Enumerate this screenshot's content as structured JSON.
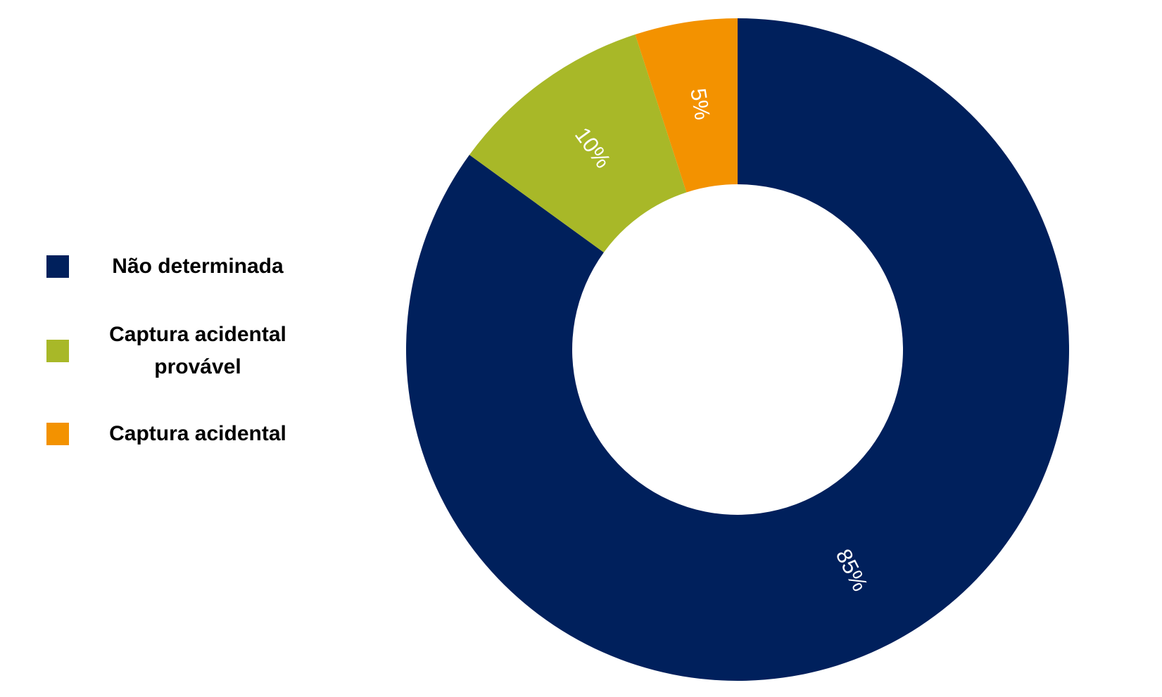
{
  "chart_data": {
    "type": "donut",
    "categories": [
      "Não determinada",
      "Captura acidental provável",
      "Captura acidental"
    ],
    "values": [
      85,
      10,
      5
    ],
    "value_labels": [
      "85%",
      "10%",
      "5%"
    ],
    "colors": [
      "#00205c",
      "#a8b828",
      "#f39200"
    ],
    "legend": "left"
  }
}
